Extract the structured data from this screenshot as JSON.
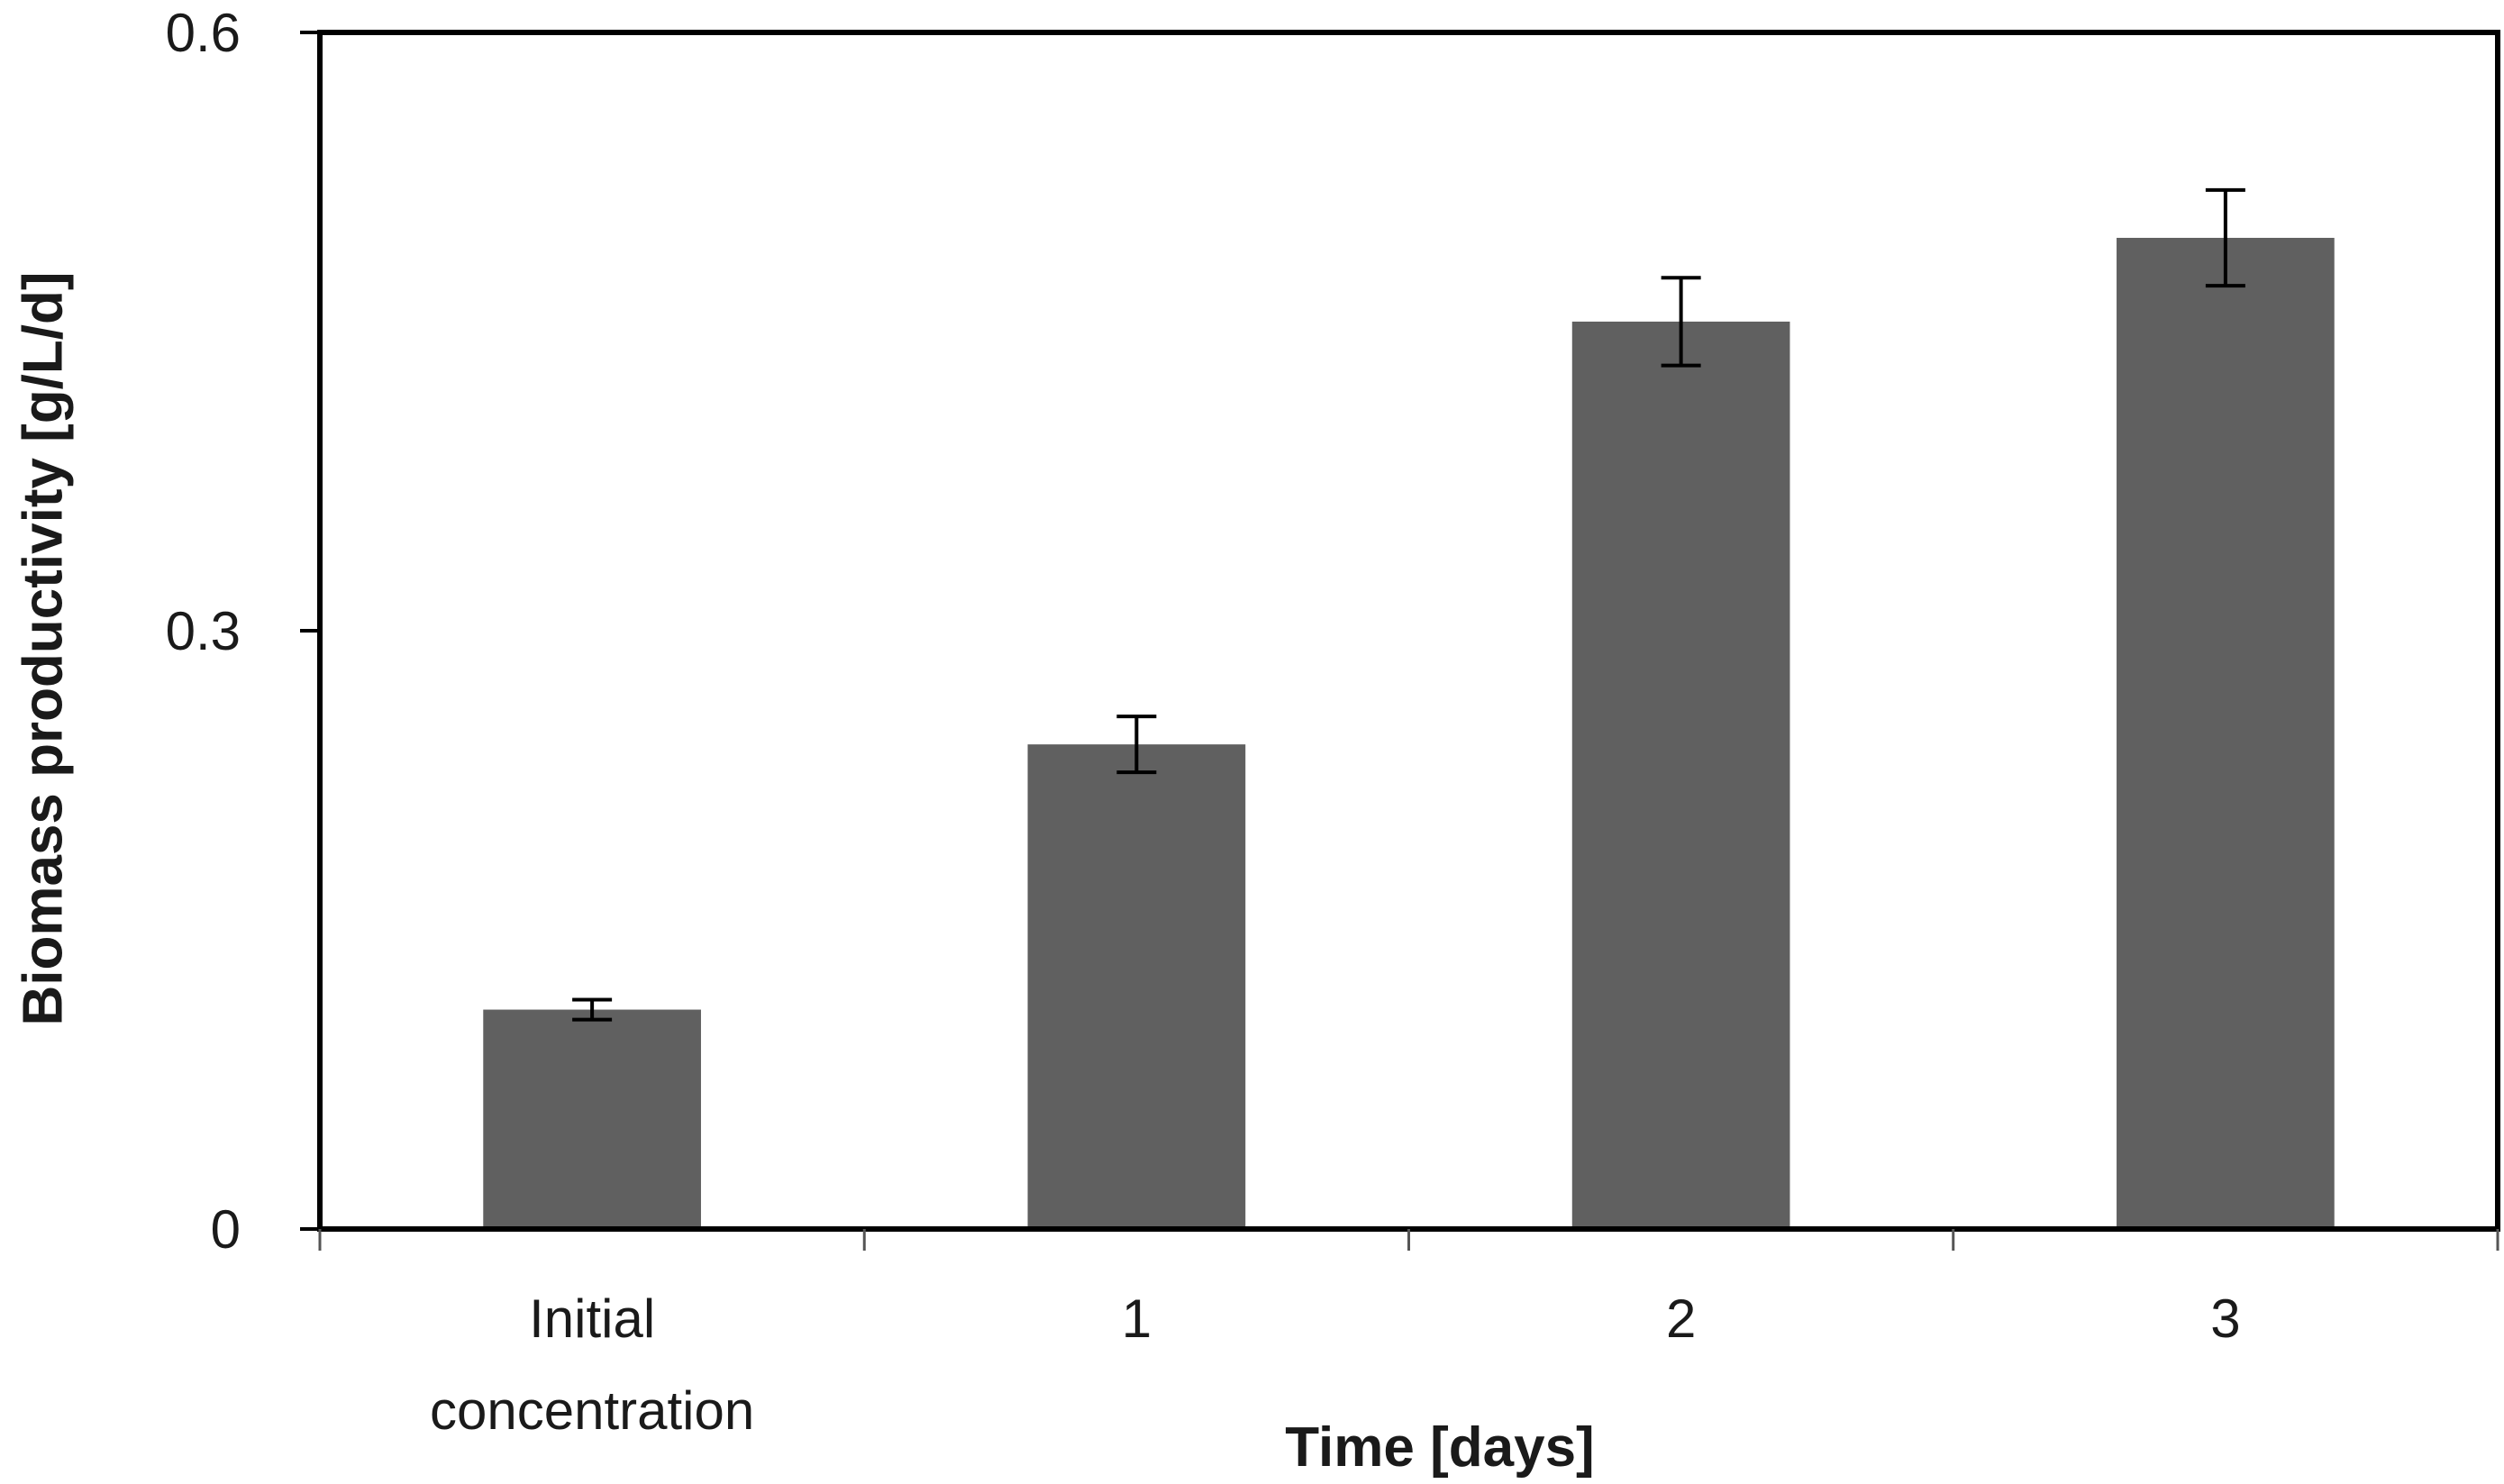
{
  "chart_data": {
    "type": "bar",
    "title": "",
    "categories": [
      [
        "Initial",
        "concentration"
      ],
      [
        "1"
      ],
      [
        "2"
      ],
      [
        "3"
      ]
    ],
    "series": [
      {
        "values": [
          0.11,
          0.243,
          0.455,
          0.497
        ],
        "errors": [
          0.005,
          0.014,
          0.022,
          0.024
        ],
        "color": "#606060"
      }
    ],
    "xlabel": "Time [days]",
    "ylabel": "Biomass productivity [g/L/d]",
    "ylim": [
      0,
      0.6
    ],
    "yticks": [
      {
        "value": 0,
        "label": "0"
      },
      {
        "value": 0.3,
        "label": "0.3"
      },
      {
        "value": 0.6,
        "label": "0.6"
      }
    ],
    "grid": false,
    "legend": "none"
  }
}
